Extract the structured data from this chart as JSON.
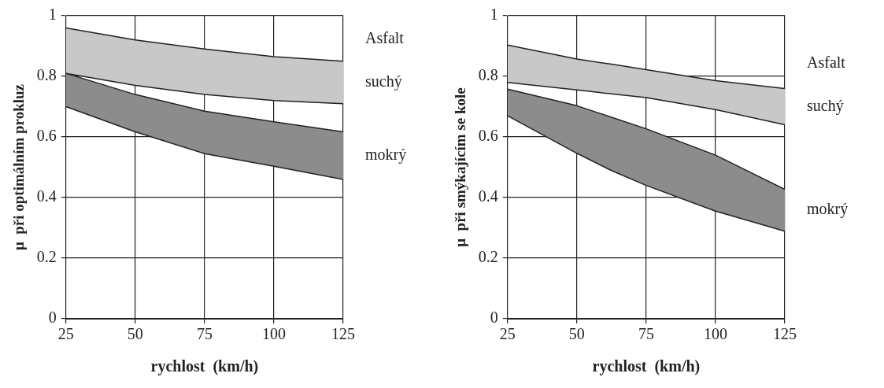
{
  "chart_data": [
    {
      "type": "line",
      "xlabel": "rychlost  (km/h)",
      "ylabel": "μ  při optimálním prokluz",
      "legend_title": "Asfalt",
      "xlim": [
        25,
        125
      ],
      "xticks": [
        25,
        50,
        75,
        100,
        125
      ],
      "ylim": [
        0,
        1
      ],
      "yticks": [
        0,
        0.2,
        0.4,
        0.6,
        0.8,
        1
      ],
      "grid": true,
      "x": [
        25,
        50,
        75,
        100,
        125
      ],
      "series": [
        {
          "color": "#222222",
          "values": [
            0.81,
            0.77,
            0.74,
            0.72,
            0.71
          ]
        },
        {
          "name": "suchý",
          "type": "area",
          "color": "#c8c8c8",
          "values": [
            0.96,
            0.92,
            0.89,
            0.865,
            0.85
          ]
        },
        {
          "color": "#222222",
          "values": [
            0.7,
            0.617,
            0.545,
            0.503,
            0.46
          ]
        },
        {
          "name": "mokrý",
          "type": "area",
          "color": "#8c8c8c",
          "values": [
            0.81,
            0.74,
            0.685,
            0.65,
            0.617
          ]
        }
      ]
    },
    {
      "type": "line",
      "xlabel": "rychlost  (km/h)",
      "ylabel": "μ  při smýkajícím se kole",
      "legend_title": "Asfalt",
      "xlim": [
        25,
        125
      ],
      "xticks": [
        25,
        50,
        75,
        100,
        125
      ],
      "ylim": [
        0,
        1
      ],
      "yticks": [
        0,
        0.2,
        0.4,
        0.6,
        0.8,
        1
      ],
      "grid": true,
      "x": [
        25,
        50,
        62.5,
        75,
        100,
        125
      ],
      "series": [
        {
          "color": "#222222",
          "values": [
            0.78,
            0.755,
            0.742,
            0.73,
            0.69,
            0.64
          ]
        },
        {
          "name": "suchý",
          "type": "area",
          "color": "#c8c8c8",
          "values": [
            0.903,
            0.857,
            0.84,
            0.822,
            0.786,
            0.76
          ]
        },
        {
          "color": "#222222",
          "values": [
            0.67,
            0.546,
            0.489,
            0.44,
            0.355,
            0.289
          ]
        },
        {
          "name": "mokrý",
          "type": "area",
          "color": "#8c8c8c",
          "values": [
            0.758,
            0.703,
            0.665,
            0.627,
            0.54,
            0.427
          ]
        }
      ]
    }
  ]
}
